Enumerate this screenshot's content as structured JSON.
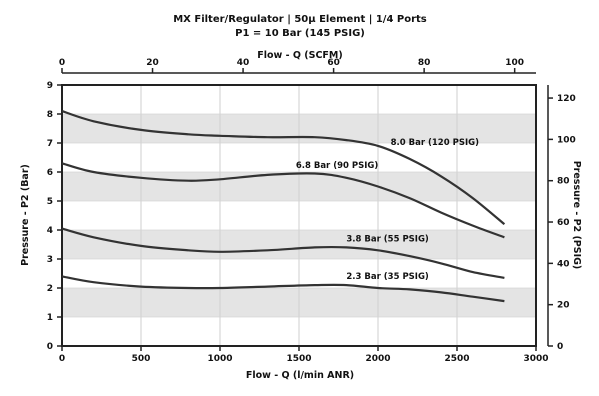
{
  "chart_data": {
    "type": "line",
    "title": "MX Filter/Regulator | 50µ Element | 1/4 Ports",
    "subtitle": "P1 = 10 Bar (145 PSIG)",
    "xlabel": "Flow - Q (l/min ANR)",
    "xlabel_top": "Flow - Q (SCFM)",
    "ylabel": "Pressure - P2 (Bar)",
    "ylabel_right": "Pressure - P2 (PSIG)",
    "xlim": [
      0,
      3000
    ],
    "ylim": [
      0,
      9
    ],
    "x_ticks": [
      "0",
      "500",
      "1000",
      "1500",
      "2000",
      "2500",
      "3000"
    ],
    "y_ticks": [
      "0",
      "1",
      "2",
      "3",
      "4",
      "5",
      "6",
      "7",
      "8",
      "9"
    ],
    "top_ticks": [
      "0",
      "20",
      "40",
      "60",
      "80",
      "100"
    ],
    "right_ticks": [
      "0",
      "20",
      "40",
      "60",
      "80",
      "100",
      "120"
    ],
    "series": [
      {
        "name": "8.0 Bar (120 PSIG)",
        "x": [
          0,
          200,
          500,
          800,
          1000,
          1300,
          1600,
          1800,
          2000,
          2200,
          2400,
          2600,
          2800
        ],
        "y": [
          8.1,
          7.75,
          7.45,
          7.3,
          7.25,
          7.2,
          7.2,
          7.1,
          6.9,
          6.45,
          5.85,
          5.1,
          4.2
        ]
      },
      {
        "name": "6.8 Bar (90 PSIG)",
        "x": [
          0,
          200,
          500,
          800,
          1000,
          1300,
          1600,
          1800,
          2000,
          2200,
          2400,
          2600,
          2800
        ],
        "y": [
          6.3,
          6.0,
          5.8,
          5.7,
          5.75,
          5.9,
          5.95,
          5.8,
          5.5,
          5.1,
          4.6,
          4.15,
          3.75
        ]
      },
      {
        "name": "3.8 Bar (55 PSIG)",
        "x": [
          0,
          200,
          500,
          800,
          1000,
          1300,
          1600,
          1800,
          2000,
          2200,
          2400,
          2600,
          2800
        ],
        "y": [
          4.05,
          3.75,
          3.45,
          3.3,
          3.25,
          3.3,
          3.4,
          3.4,
          3.3,
          3.1,
          2.85,
          2.55,
          2.35
        ]
      },
      {
        "name": "2.3 Bar (35 PSIG)",
        "x": [
          0,
          200,
          500,
          800,
          1000,
          1300,
          1600,
          1800,
          2000,
          2200,
          2400,
          2600,
          2800
        ],
        "y": [
          2.4,
          2.2,
          2.05,
          2.0,
          2.0,
          2.05,
          2.1,
          2.1,
          2.0,
          1.95,
          1.85,
          1.7,
          1.55
        ]
      }
    ],
    "grid": true,
    "colors": {
      "line": "#333333",
      "grid_band": "#e4e4e4",
      "frame": "#222222"
    }
  }
}
